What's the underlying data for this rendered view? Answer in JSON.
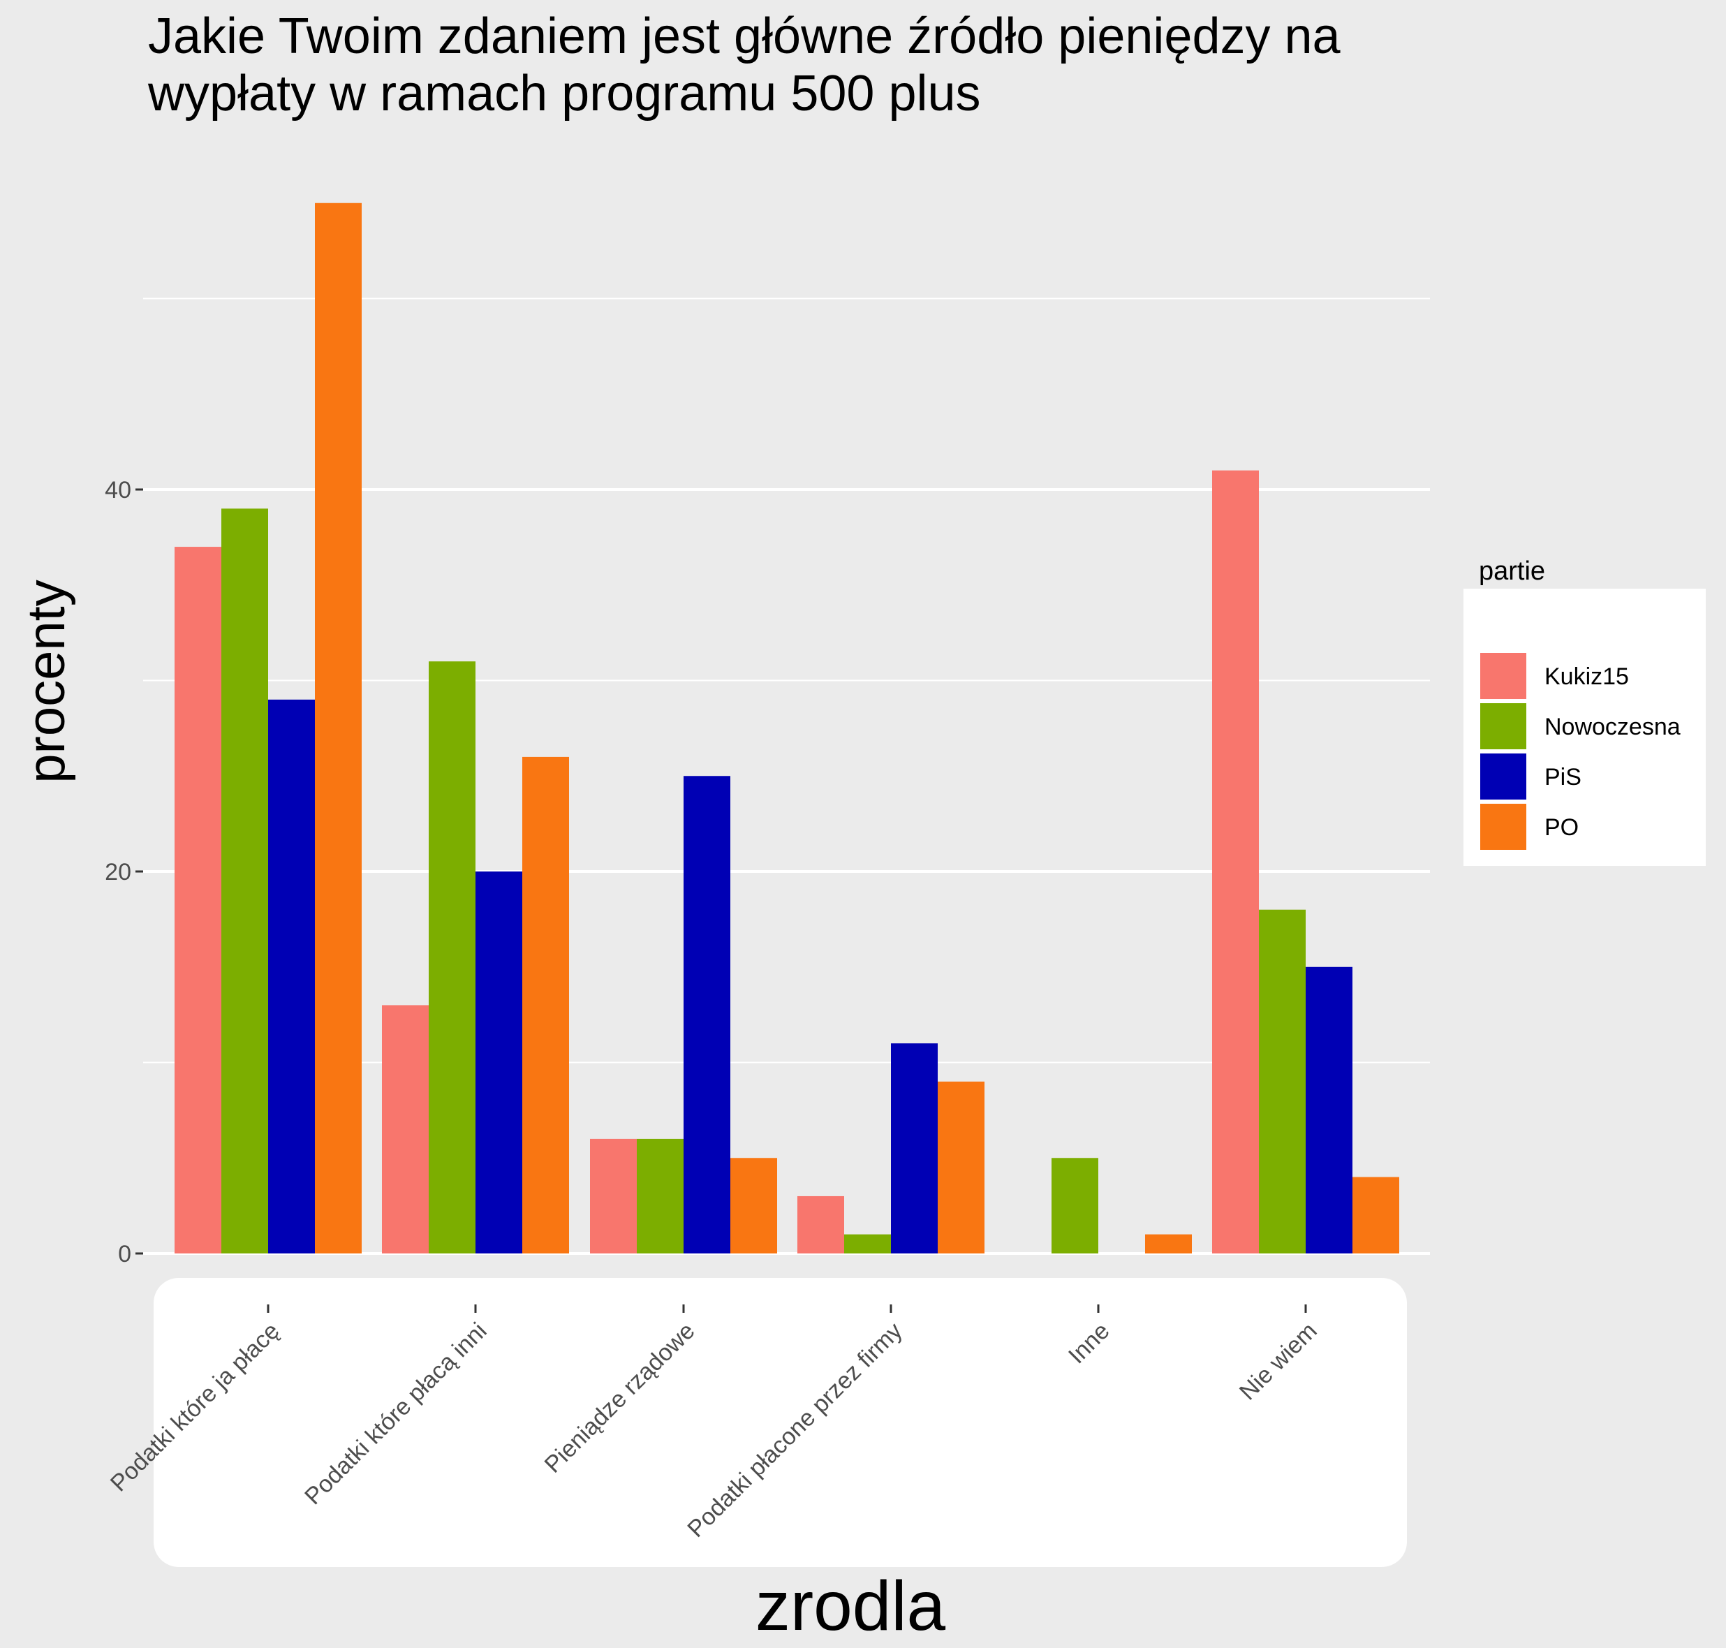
{
  "chart_data": {
    "type": "bar",
    "title": "Jakie Twoim zdaniem jest główne źródło pieniędzy na wypłaty w ramach programu 500 plus",
    "title_lines": [
      "Jakie Twoim zdaniem jest główne źródło pieniędzy na",
      "wypłaty w ramach programu 500 plus"
    ],
    "xlabel": "zrodla",
    "ylabel": "procenty",
    "ylim": [
      0,
      57
    ],
    "y_ticks": [
      "0",
      "20",
      "40"
    ],
    "grid": true,
    "legend": {
      "title": "partie",
      "position": "right"
    },
    "categories": [
      "Podatki które ja płacę",
      "Podatki które płacą inni",
      "Pieniądze rządowe",
      "Podatki płacone przez firmy",
      "Inne",
      "Nie wiem"
    ],
    "series": [
      {
        "name": "Kukiz15",
        "color": "#f8766d",
        "values": [
          37,
          13,
          6,
          3,
          0,
          41
        ]
      },
      {
        "name": "Nowoczesna",
        "color": "#7cae00",
        "values": [
          39,
          31,
          6,
          1,
          5,
          18
        ]
      },
      {
        "name": "PiS",
        "color": "#0000b4",
        "values": [
          29,
          20,
          25,
          11,
          0,
          15
        ]
      },
      {
        "name": "PO",
        "color": "#f97612",
        "values": [
          55,
          26,
          5,
          9,
          1,
          4
        ]
      }
    ]
  }
}
